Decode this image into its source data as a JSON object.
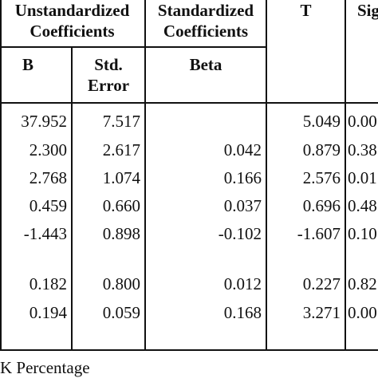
{
  "header": {
    "unstandardized": [
      "Unstandardized",
      "Coefficients"
    ],
    "standardized": [
      "Standardized",
      "Coefficients"
    ],
    "t": "T",
    "sig": "Sig"
  },
  "subheader": {
    "b": "B",
    "std_error": [
      "Std.",
      "Error"
    ],
    "beta": "Beta"
  },
  "rows": [
    {
      "b": "37.952",
      "se": "7.517",
      "beta": "",
      "t": "5.049",
      "sig": "0.00"
    },
    {
      "b": "2.300",
      "se": "2.617",
      "beta": "0.042",
      "t": "0.879",
      "sig": "0.38"
    },
    {
      "b": "2.768",
      "se": "1.074",
      "beta": "0.166",
      "t": "2.576",
      "sig": "0.01"
    },
    {
      "b": "0.459",
      "se": "0.660",
      "beta": "0.037",
      "t": "0.696",
      "sig": "0.48"
    },
    {
      "b": "-1.443",
      "se": "0.898",
      "beta": "-0.102",
      "t": "-1.607",
      "sig": "0.10"
    },
    {
      "b": "0.182",
      "se": "0.800",
      "beta": "0.012",
      "t": "0.227",
      "sig": "0.82"
    },
    {
      "b": "0.194",
      "se": "0.059",
      "beta": "0.168",
      "t": "3.271",
      "sig": "0.00"
    }
  ],
  "footnote": "K  Percentage"
}
